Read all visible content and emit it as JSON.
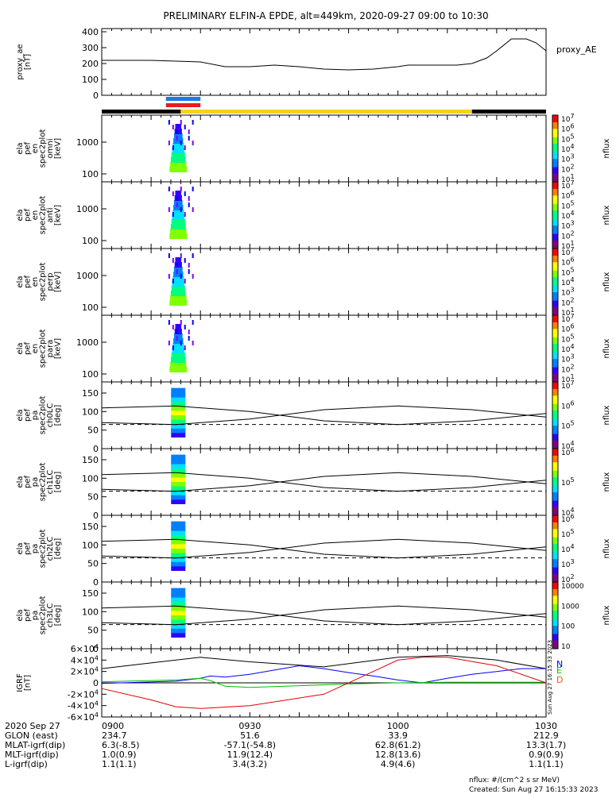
{
  "chart_data": {
    "type": "spectrogram",
    "title": "PRELIMINARY ELFIN-A EPDE, alt=449km, 2020-09-27 09:00 to 10:30",
    "x": {
      "label": "",
      "range": [
        "0900",
        "1030"
      ],
      "ticks": [
        "0900",
        "0930",
        "1000",
        "1030"
      ]
    },
    "panels": [
      {
        "id": "proxy_ae",
        "type": "line",
        "ylabel": [
          "proxy_ae",
          "[nT]"
        ],
        "ylim": [
          0,
          420
        ],
        "yticks": [
          "0",
          "100",
          "200",
          "300",
          "400"
        ],
        "legend": "proxy_AE",
        "series": [
          {
            "name": "proxy_AE",
            "color": "#000000",
            "x": [
              0,
              5,
              10,
              15,
              20,
              25,
              30,
              35,
              40,
              45,
              50,
              55,
              60,
              62,
              65,
              70,
              72,
              75,
              78,
              80,
              83,
              86,
              88,
              90
            ],
            "y": [
              220,
              220,
              220,
              215,
              210,
              180,
              180,
              190,
              180,
              165,
              160,
              165,
              180,
              190,
              190,
              190,
              190,
              200,
              235,
              280,
              355,
              355,
              330,
              280
            ]
          }
        ]
      },
      {
        "id": "omni",
        "type": "spectrogram",
        "ylabel": [
          "ela",
          "pef",
          "en",
          "spec2plot",
          "omni",
          "[keV]"
        ],
        "yticks": [
          "100",
          "1000"
        ],
        "log": true,
        "zlabel": "nflux",
        "zticks": [
          "10^1",
          "10^2",
          "10^3",
          "10^4",
          "10^5",
          "10^6",
          "10^7"
        ]
      },
      {
        "id": "anti",
        "type": "spectrogram",
        "ylabel": [
          "ela",
          "pef",
          "en",
          "spec2plot",
          "anti",
          "[keV]"
        ],
        "yticks": [
          "100",
          "1000"
        ],
        "log": true,
        "zlabel": "nflux",
        "zticks": [
          "10^1",
          "10^2",
          "10^3",
          "10^4",
          "10^5",
          "10^6",
          "10^7"
        ]
      },
      {
        "id": "perp",
        "type": "spectrogram",
        "ylabel": [
          "ela",
          "pef",
          "en",
          "spec2plot",
          "perp",
          "[keV]"
        ],
        "yticks": [
          "100",
          "1000"
        ],
        "log": true,
        "zlabel": "nflux",
        "zticks": [
          "10^1",
          "10^2",
          "10^3",
          "10^4",
          "10^5",
          "10^6",
          "10^7"
        ]
      },
      {
        "id": "para",
        "type": "spectrogram",
        "ylabel": [
          "ela",
          "pef",
          "en",
          "spec2plot",
          "para",
          "[keV]"
        ],
        "yticks": [
          "100",
          "1000"
        ],
        "log": true,
        "zlabel": "nflux",
        "zticks": [
          "10^1",
          "10^2",
          "10^3",
          "10^4",
          "10^5",
          "10^6",
          "10^7"
        ]
      },
      {
        "id": "ch0LC",
        "type": "spectrogram",
        "ylabel": [
          "ela",
          "pef",
          "pa",
          "spec2plot",
          "ch0LC",
          "[deg]"
        ],
        "yticks": [
          "0",
          "50",
          "100",
          "150"
        ],
        "zlabel": "nflux",
        "zticks": [
          "10^4",
          "10^5",
          "10^6",
          "10^7"
        ]
      },
      {
        "id": "ch1LC",
        "type": "spectrogram",
        "ylabel": [
          "ela",
          "pef",
          "pa",
          "spec2plot",
          "ch1LC",
          "[deg]"
        ],
        "yticks": [
          "0",
          "50",
          "100",
          "150"
        ],
        "zlabel": "nflux",
        "zticks": [
          "10^4",
          "10^5",
          "10^6"
        ]
      },
      {
        "id": "ch2LC",
        "type": "spectrogram",
        "ylabel": [
          "ela",
          "pef",
          "pa",
          "spec2plot",
          "ch2LC",
          "[deg]"
        ],
        "yticks": [
          "0",
          "50",
          "100",
          "150"
        ],
        "zlabel": "nflux",
        "zticks": [
          "10^2",
          "10^3",
          "10^4",
          "10^5",
          "10^6"
        ]
      },
      {
        "id": "ch3LC",
        "type": "spectrogram",
        "ylabel": [
          "ela",
          "pef",
          "pa",
          "spec2plot",
          "ch3LC",
          "[deg]"
        ],
        "yticks": [
          "0",
          "50",
          "100",
          "150"
        ],
        "zlabel": "nflux",
        "zticks": [
          "10",
          "100",
          "1000",
          "10000"
        ]
      },
      {
        "id": "igrf",
        "type": "line",
        "ylabel": [
          "IGRF",
          "[nT]"
        ],
        "ylim": [
          -60000,
          60000
        ],
        "yticks": [
          "-6×10^4",
          "-4×10^4",
          "-2×10^4",
          "0",
          "2×10^4",
          "4×10^4",
          "6×10^4"
        ],
        "legend": [
          "N",
          "E",
          "D"
        ],
        "series": [
          {
            "name": "black",
            "color": "#000000",
            "x": [
              0,
              10,
              20,
              30,
              45,
              60,
              70,
              80,
              90
            ],
            "y": [
              25000,
              35000,
              45000,
              37000,
              28000,
              45000,
              48000,
              40000,
              25000
            ]
          },
          {
            "name": "N",
            "color": "#0000ff",
            "x": [
              0,
              15,
              20,
              22,
              25,
              30,
              40,
              45,
              50,
              55,
              60,
              65,
              70,
              75,
              80,
              85,
              90
            ],
            "y": [
              -1000,
              3000,
              8000,
              12000,
              10000,
              15000,
              30000,
              25000,
              18000,
              12000,
              5000,
              0,
              8000,
              15000,
              20000,
              25000,
              25000
            ]
          },
          {
            "name": "E",
            "color": "#00c000",
            "x": [
              0,
              15,
              20,
              22,
              25,
              30,
              40,
              50,
              60,
              70,
              75,
              80,
              85,
              90
            ],
            "y": [
              2000,
              5000,
              8000,
              4000,
              -6000,
              -8000,
              -5000,
              -2000,
              0,
              1000,
              1000,
              1000,
              1000,
              1000
            ]
          },
          {
            "name": "D",
            "color": "#e00000",
            "x": [
              0,
              10,
              15,
              20,
              30,
              45,
              55,
              60,
              65,
              70,
              80,
              90
            ],
            "y": [
              -10000,
              -30000,
              -42000,
              -45000,
              -40000,
              -20000,
              20000,
              40000,
              45000,
              45000,
              30000,
              0
            ]
          }
        ]
      }
    ],
    "annotations": {
      "legend_N": "N",
      "legend_E": "E",
      "legend_D": "D",
      "legend_AE": "proxy_AE",
      "flux_unit": "nflux: #/(cm^2 s sr MeV)",
      "created": "Created: Sun Aug 27 16:15:33 2023",
      "created_side": "Sun Aug 27 16:15:33 2023"
    },
    "bottom_rows": {
      "labels": [
        "2020 Sep 27",
        "GLON (east)",
        "MLAT-igrf(dip)",
        "MLT-igrf(dip)",
        "L-igrf(dip)"
      ],
      "columns": [
        {
          "tick": "0900",
          "values": [
            "234.7",
            "6.3(-8.5)",
            "1.0(0.9)",
            "1.1(1.1)"
          ]
        },
        {
          "tick": "0930",
          "values": [
            "51.6",
            "-57.1(-54.8)",
            "11.9(12.4)",
            "3.4(3.2)"
          ]
        },
        {
          "tick": "1000",
          "values": [
            "33.9",
            "62.8(61.2)",
            "12.8(13.6)",
            "4.9(4.6)"
          ]
        },
        {
          "tick": "1030",
          "values": [
            "212.9",
            "13.3(1.7)",
            "0.9(0.9)",
            "1.1(1.1)"
          ]
        }
      ]
    },
    "status_bar": [
      {
        "from": 0,
        "to": 16,
        "color": "#000000"
      },
      {
        "from": 16,
        "to": 75,
        "color": "#f5d31a"
      },
      {
        "from": 75,
        "to": 90,
        "color": "#000000"
      }
    ],
    "science_markers": [
      {
        "from": 13,
        "to": 20,
        "color": "#1e78e6"
      },
      {
        "from": 13,
        "to": 20,
        "color": "#e61e1e"
      }
    ],
    "lc_lines": {
      "solid": [
        110,
        115,
        100,
        75,
        65,
        75,
        95
      ],
      "dashed": 65,
      "x": [
        0,
        15,
        30,
        45,
        60,
        75,
        90
      ]
    }
  }
}
